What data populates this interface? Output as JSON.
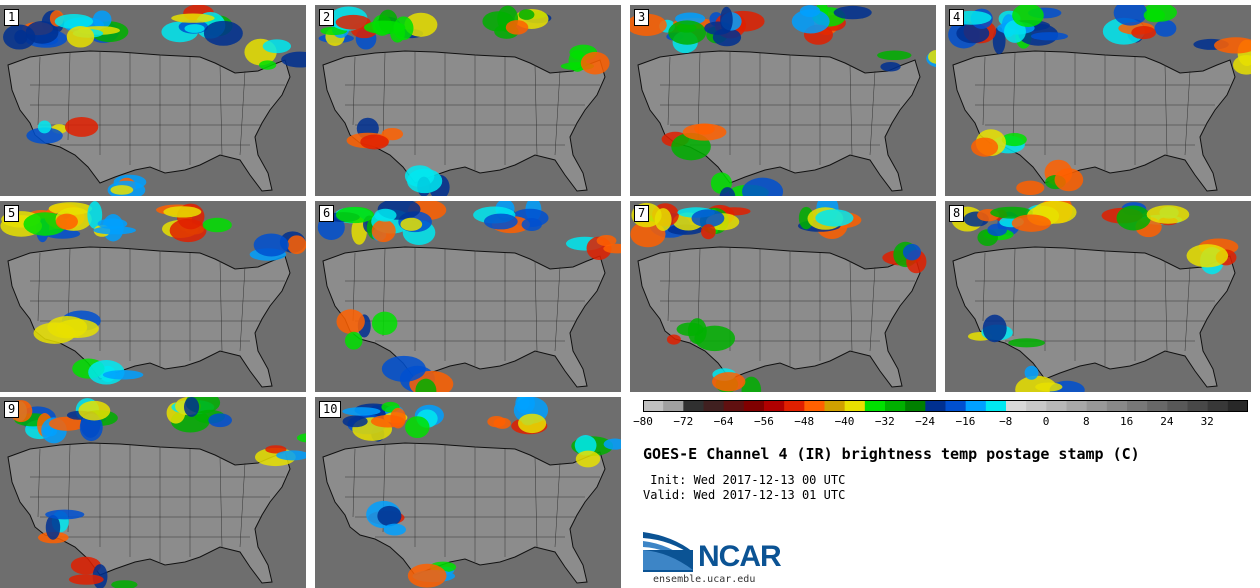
{
  "figure": {
    "title": "GOES-E Channel 4 (IR) brightness temp postage stamp (C)",
    "init_label": " Init: Wed 2017-12-13 00 UTC",
    "valid_label": "Valid: Wed 2017-12-13 01 UTC",
    "logo_text": "NCAR",
    "logo_url": "ensemble.ucar.edu"
  },
  "panels": [
    "1",
    "2",
    "3",
    "4",
    "5",
    "6",
    "7",
    "8",
    "9",
    "10"
  ],
  "colorbar": {
    "ticks": [
      "−80",
      "−72",
      "−64",
      "−56",
      "−48",
      "−40",
      "−32",
      "−24",
      "−16",
      "−8",
      "0",
      "8",
      "16",
      "24",
      "32"
    ],
    "colors": [
      "#c0c0c0",
      "#a0a0a0",
      "#303030",
      "#402020",
      "#601010",
      "#800000",
      "#b00000",
      "#e02000",
      "#ff6000",
      "#d0a000",
      "#e8e000",
      "#00e000",
      "#00b000",
      "#008000",
      "#003090",
      "#0050d0",
      "#00a0ff",
      "#00e8f0",
      "#d8d8d8",
      "#c8c8c8",
      "#b8b8b8",
      "#a8a8a8",
      "#989898",
      "#888888",
      "#787878",
      "#686868",
      "#585858",
      "#484848",
      "#383838",
      "#282828"
    ]
  },
  "chart_data": {
    "type": "heatmap",
    "title": "GOES-E Channel 4 (IR) brightness temp postage stamp (C)",
    "members": 10,
    "colorbar_range": [
      -80,
      40
    ],
    "colorbar_ticks": [
      -80,
      -72,
      -64,
      -56,
      -48,
      -40,
      -32,
      -24,
      -16,
      -8,
      0,
      8,
      16,
      24,
      32
    ],
    "units": "C"
  }
}
